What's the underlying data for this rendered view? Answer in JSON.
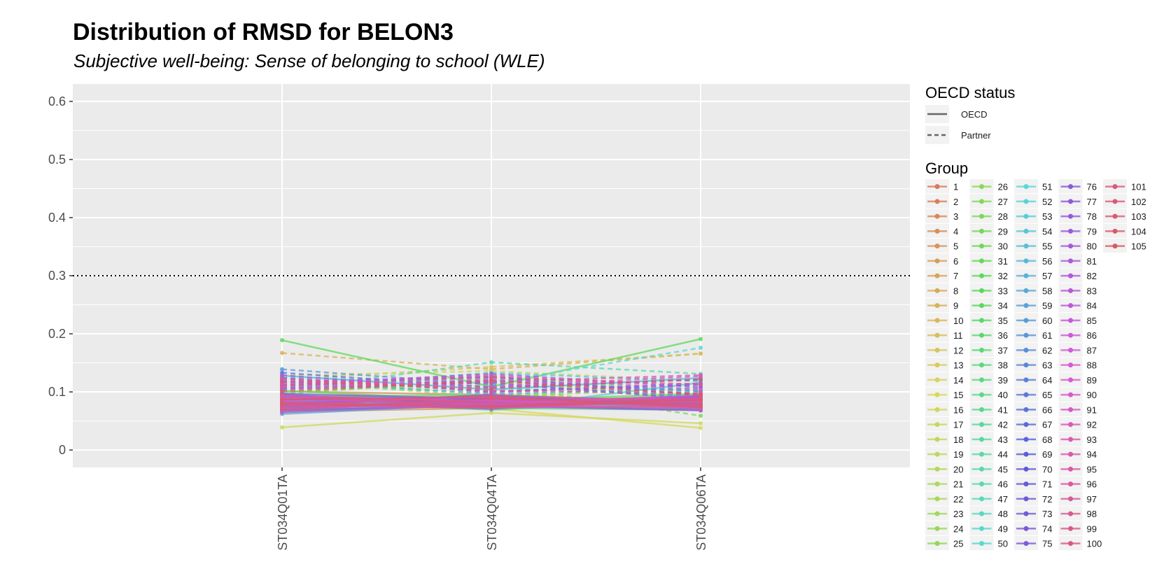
{
  "chart_data": {
    "type": "line",
    "title": "Distribution of RMSD for BELON3",
    "subtitle": "Subjective well-being: Sense of belonging to school (WLE)",
    "xlabel": "",
    "ylabel": "",
    "categories": [
      "ST034Q01TA",
      "ST034Q04TA",
      "ST034Q06TA"
    ],
    "ylim": [
      -0.03,
      0.63
    ],
    "yticks": [
      0,
      0.1,
      0.2,
      0.3,
      0.4,
      0.5,
      0.6
    ],
    "ytick_labels": [
      "0",
      "0.1",
      "0.2",
      "0.3",
      "0.4",
      "0.5",
      "0.6"
    ],
    "reference_line": 0.3,
    "grid": true,
    "legend_position": "right",
    "legend_linetype": {
      "title": "OECD status",
      "entries": [
        {
          "label": "OECD",
          "linetype": "solid"
        },
        {
          "label": "Partner",
          "linetype": "dashed"
        }
      ]
    },
    "legend_group_title": "Group",
    "series": [
      {
        "name": "1",
        "status": "OECD",
        "values": [
          0.083,
          0.085,
          0.078
        ]
      },
      {
        "name": "2",
        "status": "OECD",
        "values": [
          0.092,
          0.078,
          0.088
        ]
      },
      {
        "name": "3",
        "status": "OECD",
        "values": [
          0.071,
          0.089,
          0.082
        ]
      },
      {
        "name": "4",
        "status": "OECD",
        "values": [
          0.101,
          0.095,
          0.074
        ]
      },
      {
        "name": "5",
        "status": "OECD",
        "values": [
          0.066,
          0.072,
          0.091
        ]
      },
      {
        "name": "6",
        "status": "OECD",
        "values": [
          0.088,
          0.081,
          0.069
        ]
      },
      {
        "name": "7",
        "status": "OECD",
        "values": [
          0.079,
          0.093,
          0.085
        ]
      },
      {
        "name": "8",
        "status": "OECD",
        "values": [
          0.095,
          0.076,
          0.079
        ]
      },
      {
        "name": "9",
        "status": "Partner",
        "values": [
          0.167,
          0.139,
          0.166
        ]
      },
      {
        "name": "10",
        "status": "OECD",
        "values": [
          0.074,
          0.084,
          0.092
        ]
      },
      {
        "name": "11",
        "status": "Partner",
        "values": [
          0.121,
          0.143,
          0.166
        ]
      },
      {
        "name": "12",
        "status": "OECD",
        "values": [
          0.086,
          0.079,
          0.071
        ]
      },
      {
        "name": "13",
        "status": "OECD",
        "values": [
          0.069,
          0.091,
          0.083
        ]
      },
      {
        "name": "14",
        "status": "Partner",
        "values": [
          0.108,
          0.129,
          0.097
        ]
      },
      {
        "name": "15",
        "status": "OECD",
        "values": [
          0.077,
          0.071,
          0.038
        ]
      },
      {
        "name": "16",
        "status": "OECD",
        "values": [
          0.039,
          0.064,
          0.046
        ]
      },
      {
        "name": "17",
        "status": "Partner",
        "values": [
          0.128,
          0.136,
          0.119
        ]
      },
      {
        "name": "18",
        "status": "OECD",
        "values": [
          0.091,
          0.087,
          0.076
        ]
      },
      {
        "name": "19",
        "status": "Partner",
        "values": [
          0.099,
          0.118,
          0.088
        ]
      },
      {
        "name": "20",
        "status": "OECD",
        "values": [
          0.082,
          0.073,
          0.094
        ]
      },
      {
        "name": "21",
        "status": "OECD",
        "values": [
          0.072,
          0.096,
          0.081
        ]
      },
      {
        "name": "22",
        "status": "Partner",
        "values": [
          0.113,
          0.104,
          0.068
        ]
      },
      {
        "name": "23",
        "status": "OECD",
        "values": [
          0.087,
          0.082,
          0.073
        ]
      },
      {
        "name": "24",
        "status": "OECD",
        "values": [
          0.065,
          0.079,
          0.087
        ]
      },
      {
        "name": "25",
        "status": "Partner",
        "values": [
          0.118,
          0.092,
          0.106
        ]
      },
      {
        "name": "26",
        "status": "OECD",
        "values": [
          0.094,
          0.088,
          0.079
        ]
      },
      {
        "name": "27",
        "status": "OECD",
        "values": [
          0.081,
          0.074,
          0.092
        ]
      },
      {
        "name": "28",
        "status": "Partner",
        "values": [
          0.105,
          0.112,
          0.059
        ]
      },
      {
        "name": "29",
        "status": "OECD",
        "values": [
          0.076,
          0.089,
          0.084
        ]
      },
      {
        "name": "30",
        "status": "OECD",
        "values": [
          0.089,
          0.077,
          0.071
        ]
      },
      {
        "name": "31",
        "status": "OECD",
        "values": [
          0.102,
          0.085,
          0.097
        ]
      },
      {
        "name": "32",
        "status": "OECD",
        "values": [
          0.189,
          0.109,
          0.191
        ]
      },
      {
        "name": "33",
        "status": "Partner",
        "values": [
          0.097,
          0.121,
          0.089
        ]
      },
      {
        "name": "34",
        "status": "OECD",
        "values": [
          0.073,
          0.083,
          0.076
        ]
      },
      {
        "name": "35",
        "status": "OECD",
        "values": [
          0.085,
          0.069,
          0.088
        ]
      },
      {
        "name": "36",
        "status": "Partner",
        "values": [
          0.116,
          0.098,
          0.075
        ]
      },
      {
        "name": "37",
        "status": "OECD",
        "values": [
          0.067,
          0.081,
          0.094
        ]
      },
      {
        "name": "38",
        "status": "OECD",
        "values": [
          0.093,
          0.094,
          0.082
        ]
      },
      {
        "name": "39",
        "status": "Partner",
        "values": [
          0.109,
          0.127,
          0.102
        ]
      },
      {
        "name": "40",
        "status": "OECD",
        "values": [
          0.084,
          0.072,
          0.069
        ]
      },
      {
        "name": "41",
        "status": "OECD",
        "values": [
          0.078,
          0.088,
          0.086
        ]
      },
      {
        "name": "42",
        "status": "Partner",
        "values": [
          0.122,
          0.107,
          0.093
        ]
      },
      {
        "name": "43",
        "status": "OECD",
        "values": [
          0.091,
          0.079,
          0.074
        ]
      },
      {
        "name": "44",
        "status": "OECD",
        "values": [
          0.068,
          0.086,
          0.081
        ]
      },
      {
        "name": "45",
        "status": "Partner",
        "values": [
          0.103,
          0.151,
          0.131
        ]
      },
      {
        "name": "46",
        "status": "OECD",
        "values": [
          0.086,
          0.075,
          0.089
        ]
      },
      {
        "name": "47",
        "status": "OECD",
        "values": [
          0.075,
          0.091,
          0.077
        ]
      },
      {
        "name": "48",
        "status": "Partner",
        "values": [
          0.114,
          0.124,
          0.099
        ]
      },
      {
        "name": "49",
        "status": "OECD",
        "values": [
          0.089,
          0.082,
          0.072
        ]
      },
      {
        "name": "50",
        "status": "OECD",
        "values": [
          0.071,
          0.078,
          0.085
        ]
      },
      {
        "name": "51",
        "status": "Partner",
        "values": [
          0.126,
          0.115,
          0.176
        ]
      },
      {
        "name": "52",
        "status": "OECD",
        "values": [
          0.083,
          0.087,
          0.079
        ]
      },
      {
        "name": "53",
        "status": "OECD",
        "values": [
          0.098,
          0.071,
          0.116
        ]
      },
      {
        "name": "54",
        "status": "Partner",
        "values": [
          0.107,
          0.133,
          0.118
        ]
      },
      {
        "name": "55",
        "status": "OECD",
        "values": [
          0.077,
          0.084,
          0.088
        ]
      },
      {
        "name": "56",
        "status": "OECD",
        "values": [
          0.128,
          0.104,
          0.124
        ]
      },
      {
        "name": "57",
        "status": "Partner",
        "values": [
          0.119,
          0.096,
          0.107
        ]
      },
      {
        "name": "58",
        "status": "OECD",
        "values": [
          0.062,
          0.079,
          0.083
        ]
      },
      {
        "name": "59",
        "status": "OECD",
        "values": [
          0.092,
          0.088,
          0.071
        ]
      },
      {
        "name": "60",
        "status": "Partner",
        "values": [
          0.139,
          0.113,
          0.092
        ]
      },
      {
        "name": "61",
        "status": "OECD",
        "values": [
          0.079,
          0.073,
          0.087
        ]
      },
      {
        "name": "62",
        "status": "OECD",
        "values": [
          0.086,
          0.092,
          0.078
        ]
      },
      {
        "name": "63",
        "status": "Partner",
        "values": [
          0.111,
          0.119,
          0.101
        ]
      },
      {
        "name": "64",
        "status": "OECD",
        "values": [
          0.074,
          0.081,
          0.093
        ]
      },
      {
        "name": "65",
        "status": "OECD",
        "values": [
          0.095,
          0.076,
          0.069
        ]
      },
      {
        "name": "66",
        "status": "Partner",
        "values": [
          0.133,
          0.108,
          0.121
        ]
      },
      {
        "name": "67",
        "status": "OECD",
        "values": [
          0.081,
          0.089,
          0.076
        ]
      },
      {
        "name": "68",
        "status": "OECD",
        "values": [
          0.068,
          0.077,
          0.092
        ]
      },
      {
        "name": "69",
        "status": "Partner",
        "values": [
          0.117,
          0.126,
          0.094
        ]
      },
      {
        "name": "70",
        "status": "OECD",
        "values": [
          0.087,
          0.083,
          0.081
        ]
      },
      {
        "name": "71",
        "status": "OECD",
        "values": [
          0.076,
          0.095,
          0.073
        ]
      },
      {
        "name": "72",
        "status": "Partner",
        "values": [
          0.124,
          0.101,
          0.112
        ]
      },
      {
        "name": "73",
        "status": "OECD",
        "values": [
          0.092,
          0.078,
          0.086
        ]
      },
      {
        "name": "74",
        "status": "OECD",
        "values": [
          0.069,
          0.086,
          0.079
        ]
      },
      {
        "name": "75",
        "status": "Partner",
        "values": [
          0.106,
          0.116,
          0.087
        ]
      },
      {
        "name": "76",
        "status": "OECD",
        "values": [
          0.083,
          0.071,
          0.092
        ]
      },
      {
        "name": "77",
        "status": "OECD",
        "values": [
          0.097,
          0.088,
          0.075
        ]
      },
      {
        "name": "78",
        "status": "Partner",
        "values": [
          0.112,
          0.131,
          0.108
        ]
      },
      {
        "name": "79",
        "status": "OECD",
        "values": [
          0.074,
          0.082,
          0.089
        ]
      },
      {
        "name": "80",
        "status": "OECD",
        "values": [
          0.088,
          0.076,
          0.068
        ]
      },
      {
        "name": "81",
        "status": "Partner",
        "values": [
          0.129,
          0.099,
          0.115
        ]
      },
      {
        "name": "82",
        "status": "OECD",
        "values": [
          0.079,
          0.093,
          0.084
        ]
      },
      {
        "name": "83",
        "status": "OECD",
        "values": [
          0.065,
          0.079,
          0.091
        ]
      },
      {
        "name": "84",
        "status": "Partner",
        "values": [
          0.104,
          0.122,
          0.096
        ]
      },
      {
        "name": "85",
        "status": "OECD",
        "values": [
          0.091,
          0.085,
          0.077
        ]
      },
      {
        "name": "86",
        "status": "OECD",
        "values": [
          0.077,
          0.072,
          0.086
        ]
      },
      {
        "name": "87",
        "status": "Partner",
        "values": [
          0.121,
          0.109,
          0.127
        ]
      },
      {
        "name": "88",
        "status": "OECD",
        "values": [
          0.084,
          0.091,
          0.071
        ]
      },
      {
        "name": "89",
        "status": "OECD",
        "values": [
          0.072,
          0.079,
          0.094
        ]
      },
      {
        "name": "90",
        "status": "Partner",
        "values": [
          0.115,
          0.128,
          0.104
        ]
      },
      {
        "name": "91",
        "status": "OECD",
        "values": [
          0.093,
          0.084,
          0.081
        ]
      },
      {
        "name": "92",
        "status": "OECD",
        "values": [
          0.081,
          0.073,
          0.075
        ]
      },
      {
        "name": "93",
        "status": "Partner",
        "values": [
          0.109,
          0.117,
          0.129
        ]
      },
      {
        "name": "94",
        "status": "OECD",
        "values": [
          0.068,
          0.087,
          0.088
        ]
      },
      {
        "name": "95",
        "status": "OECD",
        "values": [
          0.089,
          0.079,
          0.072
        ]
      },
      {
        "name": "96",
        "status": "Partner",
        "values": [
          0.123,
          0.102,
          0.098
        ]
      },
      {
        "name": "97",
        "status": "OECD",
        "values": [
          0.076,
          0.094,
          0.083
        ]
      },
      {
        "name": "98",
        "status": "OECD",
        "values": [
          0.094,
          0.081,
          0.077
        ]
      },
      {
        "name": "99",
        "status": "Partner",
        "values": [
          0.111,
          0.125,
          0.113
        ]
      },
      {
        "name": "100",
        "status": "OECD",
        "values": [
          0.082,
          0.076,
          0.089
        ]
      },
      {
        "name": "101",
        "status": "OECD",
        "values": [
          0.071,
          0.088,
          0.079
        ]
      },
      {
        "name": "102",
        "status": "Partner",
        "values": [
          0.118,
          0.106,
          0.122
        ]
      },
      {
        "name": "103",
        "status": "OECD",
        "values": [
          0.087,
          0.091,
          0.074
        ]
      },
      {
        "name": "104",
        "status": "OECD",
        "values": [
          0.079,
          0.074,
          0.086
        ]
      },
      {
        "name": "105",
        "status": "Partner",
        "values": [
          0.101,
          0.119,
          0.095
        ]
      }
    ]
  }
}
